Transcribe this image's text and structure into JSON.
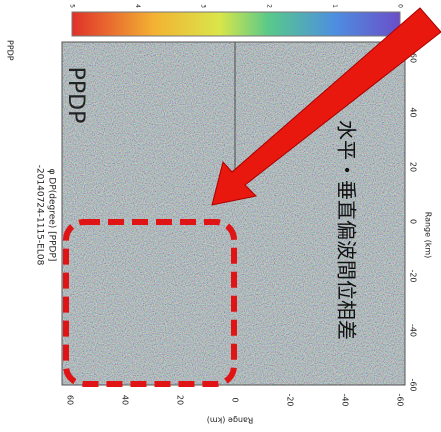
{
  "corner_label": "PPDP",
  "colorbar_ticks": [
    0,
    1,
    2,
    3,
    4,
    5
  ],
  "file_label": "-20140724-1115-EL08",
  "variable_label": "φ DP(degree)  [PPDP]",
  "big_label": "PPDP",
  "annotation": "水平・垂直偏波間位相差",
  "x_axis": {
    "title": "Range (km)",
    "ticks": [
      60,
      40,
      20,
      0,
      -20,
      -40,
      -60
    ]
  },
  "y_axis": {
    "title": "Range (km)",
    "ticks": [
      60,
      40,
      20,
      0,
      -20,
      -40,
      -60
    ]
  }
}
